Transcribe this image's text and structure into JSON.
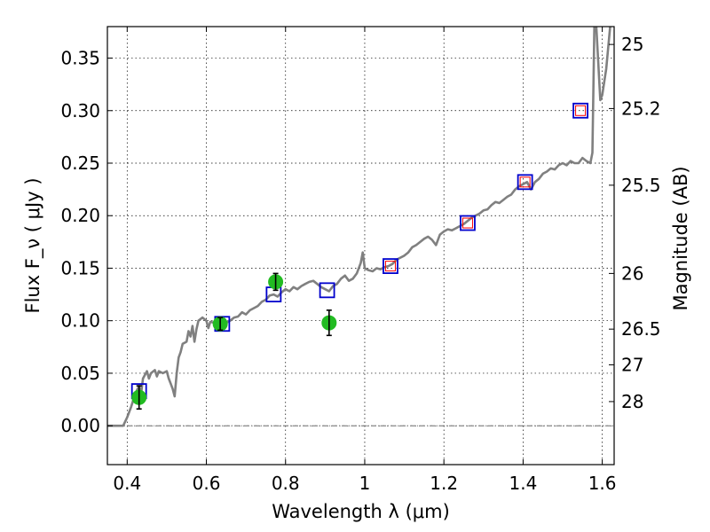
{
  "chart_data": {
    "type": "scatter",
    "title": "",
    "xlabel": "Wavelength  λ (μm)",
    "ylabel": "Flux  F_ν  ( μJy )",
    "ylabel_right": "Magnitude (AB)",
    "xlim": [
      0.35,
      1.63
    ],
    "ylim": [
      -0.037,
      0.38
    ],
    "x_ticks": [
      0.4,
      0.6,
      0.8,
      1.0,
      1.2,
      1.4,
      1.6
    ],
    "x_tick_labels": [
      "0.4",
      "0.6",
      "0.8",
      "1",
      "1.2",
      "1.4",
      "1.6"
    ],
    "y_ticks": [
      0.0,
      0.05,
      0.1,
      0.15,
      0.2,
      0.25,
      0.3,
      0.35
    ],
    "y_tick_labels": [
      "0.00",
      "0.05",
      "0.10",
      "0.15",
      "0.20",
      "0.25",
      "0.30",
      "0.35"
    ],
    "right_ticks": [
      {
        "label": "25",
        "flux": 0.363
      },
      {
        "label": "25.2",
        "flux": 0.302
      },
      {
        "label": "25.5",
        "flux": 0.229
      },
      {
        "label": "26",
        "flux": 0.145
      },
      {
        "label": "26.5",
        "flux": 0.092
      },
      {
        "label": "27",
        "flux": 0.058
      },
      {
        "label": "28",
        "flux": 0.023
      }
    ],
    "grid": true,
    "colors": {
      "sed_line": "#808080",
      "observed_points": "#22bb22",
      "model_boxes": "#0000cc",
      "model_boxes_inner": "#ff0000",
      "zero_line": "#555555"
    },
    "series": [
      {
        "type": "line",
        "points": [
          [
            0.35,
            0.0
          ],
          [
            0.38,
            0.0
          ],
          [
            0.385,
            0.0
          ],
          [
            0.39,
            0.0
          ],
          [
            0.4,
            0.008
          ],
          [
            0.41,
            0.018
          ],
          [
            0.42,
            0.03
          ],
          [
            0.43,
            0.038
          ],
          [
            0.435,
            0.03
          ],
          [
            0.44,
            0.045
          ],
          [
            0.45,
            0.052
          ],
          [
            0.455,
            0.045
          ],
          [
            0.46,
            0.05
          ],
          [
            0.47,
            0.053
          ],
          [
            0.475,
            0.047
          ],
          [
            0.48,
            0.052
          ],
          [
            0.49,
            0.05
          ],
          [
            0.5,
            0.052
          ],
          [
            0.505,
            0.045
          ],
          [
            0.51,
            0.04
          ],
          [
            0.515,
            0.035
          ],
          [
            0.52,
            0.028
          ],
          [
            0.525,
            0.05
          ],
          [
            0.53,
            0.065
          ],
          [
            0.535,
            0.07
          ],
          [
            0.54,
            0.078
          ],
          [
            0.55,
            0.08
          ],
          [
            0.555,
            0.09
          ],
          [
            0.56,
            0.085
          ],
          [
            0.565,
            0.095
          ],
          [
            0.57,
            0.08
          ],
          [
            0.575,
            0.092
          ],
          [
            0.58,
            0.1
          ],
          [
            0.59,
            0.103
          ],
          [
            0.6,
            0.1
          ],
          [
            0.605,
            0.093
          ],
          [
            0.61,
            0.099
          ],
          [
            0.62,
            0.098
          ],
          [
            0.63,
            0.1
          ],
          [
            0.64,
            0.101
          ],
          [
            0.65,
            0.098
          ],
          [
            0.66,
            0.1
          ],
          [
            0.67,
            0.103
          ],
          [
            0.68,
            0.104
          ],
          [
            0.69,
            0.108
          ],
          [
            0.7,
            0.106
          ],
          [
            0.71,
            0.11
          ],
          [
            0.72,
            0.112
          ],
          [
            0.73,
            0.114
          ],
          [
            0.74,
            0.118
          ],
          [
            0.75,
            0.12
          ],
          [
            0.76,
            0.124
          ],
          [
            0.77,
            0.125
          ],
          [
            0.78,
            0.123
          ],
          [
            0.79,
            0.127
          ],
          [
            0.8,
            0.13
          ],
          [
            0.81,
            0.128
          ],
          [
            0.82,
            0.132
          ],
          [
            0.83,
            0.13
          ],
          [
            0.84,
            0.133
          ],
          [
            0.85,
            0.135
          ],
          [
            0.86,
            0.137
          ],
          [
            0.87,
            0.138
          ],
          [
            0.88,
            0.135
          ],
          [
            0.89,
            0.132
          ],
          [
            0.9,
            0.13
          ],
          [
            0.91,
            0.128
          ],
          [
            0.92,
            0.133
          ],
          [
            0.93,
            0.135
          ],
          [
            0.94,
            0.14
          ],
          [
            0.95,
            0.143
          ],
          [
            0.96,
            0.138
          ],
          [
            0.97,
            0.14
          ],
          [
            0.98,
            0.145
          ],
          [
            0.99,
            0.155
          ],
          [
            0.995,
            0.165
          ],
          [
            1.0,
            0.15
          ],
          [
            1.01,
            0.148
          ],
          [
            1.02,
            0.147
          ],
          [
            1.03,
            0.15
          ],
          [
            1.04,
            0.149
          ],
          [
            1.05,
            0.151
          ],
          [
            1.06,
            0.152
          ],
          [
            1.07,
            0.154
          ],
          [
            1.08,
            0.158
          ],
          [
            1.09,
            0.16
          ],
          [
            1.1,
            0.162
          ],
          [
            1.11,
            0.165
          ],
          [
            1.12,
            0.17
          ],
          [
            1.13,
            0.172
          ],
          [
            1.14,
            0.175
          ],
          [
            1.15,
            0.178
          ],
          [
            1.16,
            0.18
          ],
          [
            1.17,
            0.177
          ],
          [
            1.18,
            0.172
          ],
          [
            1.19,
            0.182
          ],
          [
            1.2,
            0.185
          ],
          [
            1.21,
            0.187
          ],
          [
            1.22,
            0.186
          ],
          [
            1.23,
            0.188
          ],
          [
            1.24,
            0.19
          ],
          [
            1.25,
            0.192
          ],
          [
            1.26,
            0.195
          ],
          [
            1.27,
            0.198
          ],
          [
            1.28,
            0.2
          ],
          [
            1.29,
            0.202
          ],
          [
            1.3,
            0.205
          ],
          [
            1.31,
            0.206
          ],
          [
            1.32,
            0.21
          ],
          [
            1.33,
            0.213
          ],
          [
            1.34,
            0.212
          ],
          [
            1.35,
            0.215
          ],
          [
            1.36,
            0.218
          ],
          [
            1.37,
            0.22
          ],
          [
            1.38,
            0.225
          ],
          [
            1.39,
            0.228
          ],
          [
            1.4,
            0.23
          ],
          [
            1.41,
            0.232
          ],
          [
            1.42,
            0.225
          ],
          [
            1.43,
            0.232
          ],
          [
            1.44,
            0.235
          ],
          [
            1.45,
            0.24
          ],
          [
            1.46,
            0.242
          ],
          [
            1.47,
            0.245
          ],
          [
            1.48,
            0.244
          ],
          [
            1.49,
            0.248
          ],
          [
            1.5,
            0.25
          ],
          [
            1.51,
            0.248
          ],
          [
            1.52,
            0.252
          ],
          [
            1.53,
            0.25
          ],
          [
            1.54,
            0.25
          ],
          [
            1.55,
            0.255
          ],
          [
            1.56,
            0.252
          ],
          [
            1.57,
            0.25
          ],
          [
            1.575,
            0.26
          ],
          [
            1.58,
            0.38
          ],
          [
            1.585,
            0.38
          ],
          [
            1.595,
            0.31
          ],
          [
            1.6,
            0.315
          ],
          [
            1.61,
            0.34
          ],
          [
            1.62,
            0.38
          ]
        ]
      },
      {
        "type": "scatter",
        "name": "",
        "marker": "circle",
        "points": [
          {
            "x": 0.43,
            "y": 0.027,
            "err": 0.011
          },
          {
            "x": 0.635,
            "y": 0.097,
            "err": 0.006
          },
          {
            "x": 0.775,
            "y": 0.137,
            "err": 0.008
          },
          {
            "x": 0.91,
            "y": 0.098,
            "err": 0.012
          }
        ]
      },
      {
        "type": "scatter",
        "name": "",
        "marker": "square",
        "points": [
          {
            "x": 0.43,
            "y": 0.033
          },
          {
            "x": 0.64,
            "y": 0.097
          },
          {
            "x": 0.77,
            "y": 0.125
          },
          {
            "x": 0.905,
            "y": 0.129
          },
          {
            "x": 1.065,
            "y": 0.152
          },
          {
            "x": 1.26,
            "y": 0.193
          },
          {
            "x": 1.405,
            "y": 0.232
          },
          {
            "x": 1.545,
            "y": 0.3
          }
        ]
      },
      {
        "type": "scatter",
        "name": "",
        "marker": "square-small",
        "points": [
          {
            "x": 1.065,
            "y": 0.152
          },
          {
            "x": 1.26,
            "y": 0.193
          },
          {
            "x": 1.405,
            "y": 0.232
          },
          {
            "x": 1.545,
            "y": 0.3
          }
        ]
      }
    ]
  }
}
